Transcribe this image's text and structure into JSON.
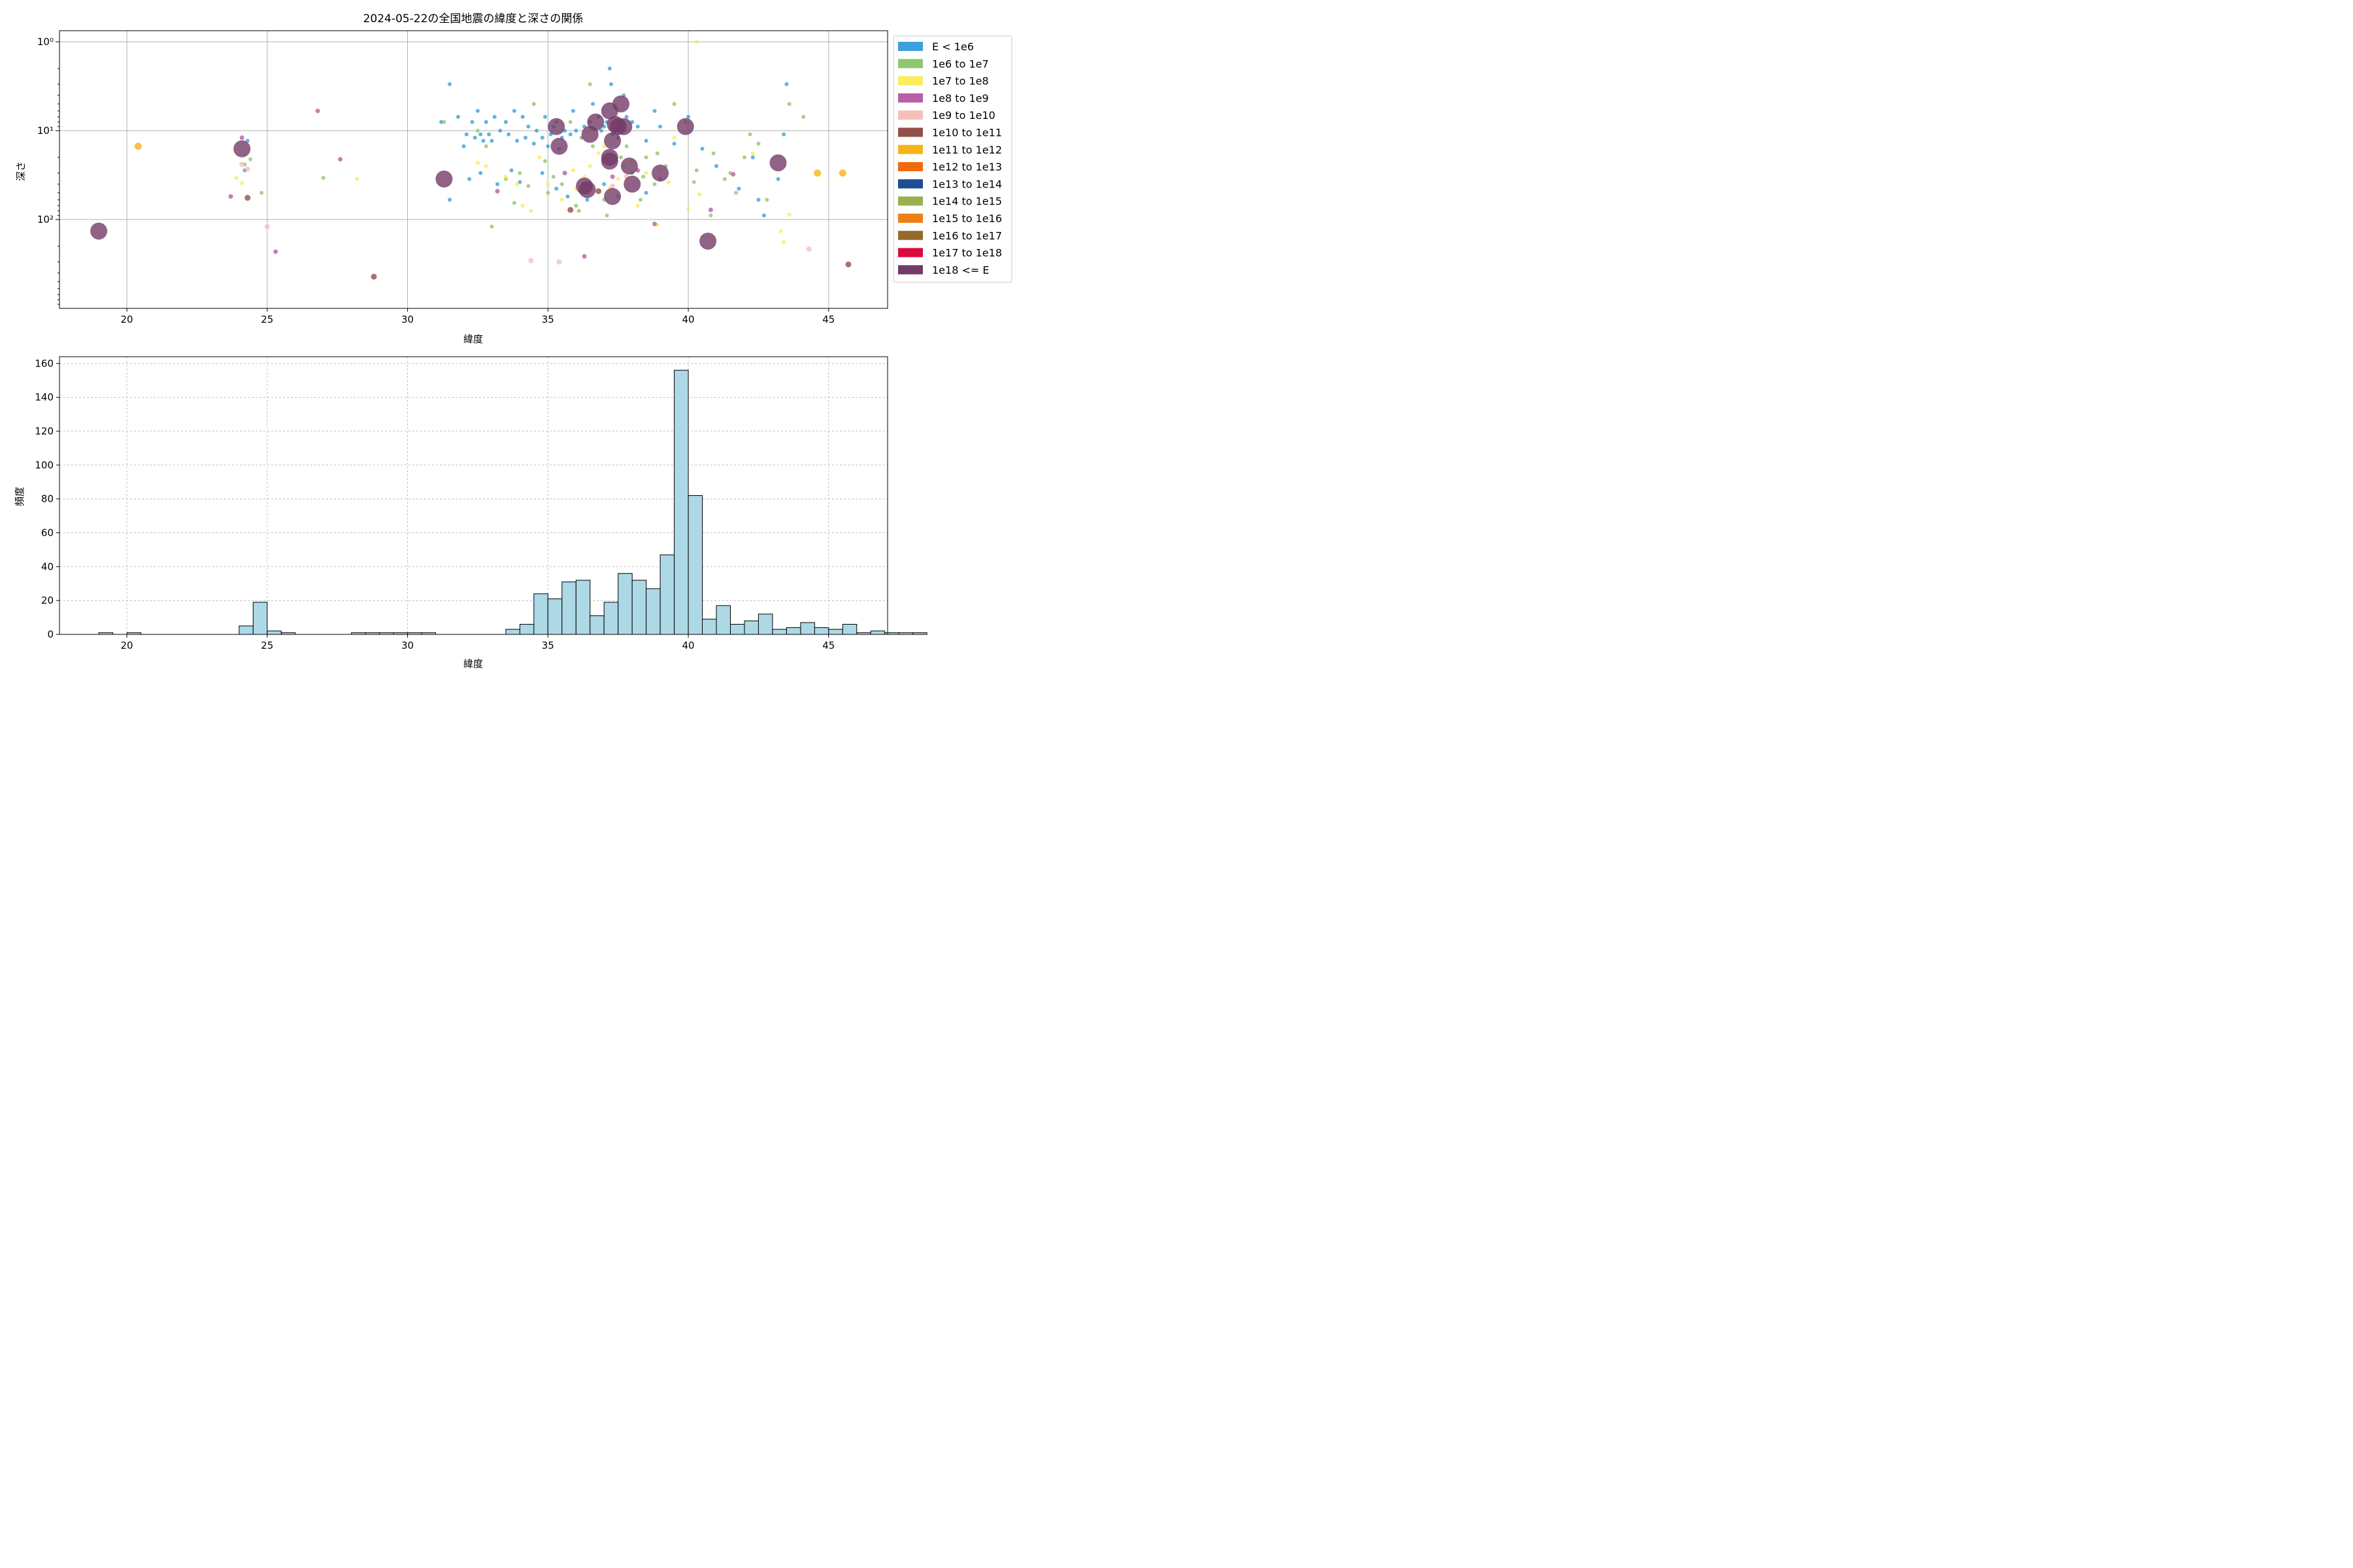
{
  "chart_data": [
    {
      "type": "scatter",
      "title": "2024-05-22の全国地震の緯度と深さの関係",
      "xlabel": "緯度",
      "ylabel": "深さ",
      "xlim": [
        17.6,
        47.1
      ],
      "ylim": [
        1000,
        0.75
      ],
      "yscale": "log",
      "y_inverted": true,
      "grid": true,
      "x_ticks": [
        "20",
        "25",
        "30",
        "35",
        "40",
        "45"
      ],
      "y_ticks": [
        {
          "value": 1,
          "label": "10⁰"
        },
        {
          "value": 10,
          "label": "10¹"
        },
        {
          "value": 100,
          "label": "10²"
        }
      ],
      "legend_position": "outside-right",
      "legend": [
        {
          "label": "E < 1e6",
          "color": "#3ca0dc"
        },
        {
          "label": "1e6 to 1e7",
          "color": "#8ec86e"
        },
        {
          "label": "1e7 to 1e8",
          "color": "#fbec5d"
        },
        {
          "label": "1e8 to 1e9",
          "color": "#b85ea7"
        },
        {
          "label": "1e9 to 1e10",
          "color": "#f5c0ba"
        },
        {
          "label": "1e10 to 1e11",
          "color": "#934f4a"
        },
        {
          "label": "1e11 to 1e12",
          "color": "#f7b417"
        },
        {
          "label": "1e12 to 1e13",
          "color": "#ef6a0c"
        },
        {
          "label": "1e13 to 1e14",
          "color": "#1d4d92"
        },
        {
          "label": "1e14 to 1e15",
          "color": "#9ab04f"
        },
        {
          "label": "1e15 to 1e16",
          "color": "#ef7f15"
        },
        {
          "label": "1e16 to 1e17",
          "color": "#946b2c"
        },
        {
          "label": "1e17 to 1e18",
          "color": "#dc0a3c"
        },
        {
          "label": "1e18 <= E",
          "color": "#733b68"
        }
      ],
      "series": [
        {
          "name": "E < 1e6",
          "points": [
            [
              31.5,
              3
            ],
            [
              31.2,
              8
            ],
            [
              31.8,
              7
            ],
            [
              32.1,
              11
            ],
            [
              32.3,
              8
            ],
            [
              32.5,
              6
            ],
            [
              32.6,
              11
            ],
            [
              32.7,
              13
            ],
            [
              32.8,
              8
            ],
            [
              32.9,
              11
            ],
            [
              33.0,
              13
            ],
            [
              33.1,
              7
            ],
            [
              33.3,
              10
            ],
            [
              33.5,
              8
            ],
            [
              33.6,
              11
            ],
            [
              33.8,
              6
            ],
            [
              33.9,
              13
            ],
            [
              34.1,
              7
            ],
            [
              34.2,
              12
            ],
            [
              34.3,
              9
            ],
            [
              34.5,
              14
            ],
            [
              34.6,
              10
            ],
            [
              34.8,
              12
            ],
            [
              34.9,
              7
            ],
            [
              35.0,
              15
            ],
            [
              35.1,
              11
            ],
            [
              35.2,
              9
            ],
            [
              35.3,
              8
            ],
            [
              35.4,
              16
            ],
            [
              35.5,
              12
            ],
            [
              35.6,
              10
            ],
            [
              35.8,
              11
            ],
            [
              35.9,
              6
            ],
            [
              36.0,
              10
            ],
            [
              36.2,
              12
            ],
            [
              36.3,
              9
            ],
            [
              36.5,
              8
            ],
            [
              36.6,
              5
            ],
            [
              36.8,
              7
            ],
            [
              36.9,
              10
            ],
            [
              37.0,
              9
            ],
            [
              37.1,
              8
            ],
            [
              37.2,
              2
            ],
            [
              37.25,
              3
            ],
            [
              37.3,
              11
            ],
            [
              37.4,
              10
            ],
            [
              37.5,
              12
            ],
            [
              37.55,
              9
            ],
            [
              37.6,
              8
            ],
            [
              37.7,
              4
            ],
            [
              37.8,
              7
            ],
            [
              38.0,
              8
            ],
            [
              38.2,
              9
            ],
            [
              38.5,
              13
            ],
            [
              38.8,
              6
            ],
            [
              39.0,
              9
            ],
            [
              39.5,
              14
            ],
            [
              40.0,
              7
            ],
            [
              40.5,
              16
            ],
            [
              41.0,
              25
            ],
            [
              41.8,
              45
            ],
            [
              42.3,
              20
            ],
            [
              42.7,
              90
            ],
            [
              43.2,
              35
            ],
            [
              43.4,
              11
            ],
            [
              43.5,
              3
            ],
            [
              32.0,
              15
            ],
            [
              32.4,
              12
            ],
            [
              32.2,
              35
            ],
            [
              33.2,
              40
            ],
            [
              34.0,
              38
            ],
            [
              34.8,
              30
            ],
            [
              35.3,
              45
            ],
            [
              36.4,
              60
            ],
            [
              37.0,
              40
            ],
            [
              38.5,
              50
            ],
            [
              39.0,
              35
            ],
            [
              42.5,
              60
            ],
            [
              31.5,
              60
            ],
            [
              33.7,
              28
            ],
            [
              35.7,
              55
            ],
            [
              24.2,
              28
            ],
            [
              24.3,
              13
            ],
            [
              32.6,
              30
            ]
          ]
        },
        {
          "name": "1e6 to 1e7",
          "points": [
            [
              24.2,
              24
            ],
            [
              24.4,
              21
            ],
            [
              24.8,
              50
            ],
            [
              27.0,
              34
            ],
            [
              31.3,
              8
            ],
            [
              32.5,
              10
            ],
            [
              33.0,
              120
            ],
            [
              33.5,
              35
            ],
            [
              34.0,
              30
            ],
            [
              34.5,
              5
            ],
            [
              35.0,
              50
            ],
            [
              35.5,
              40
            ],
            [
              36.0,
              70
            ],
            [
              36.5,
              3
            ],
            [
              37.0,
              60
            ],
            [
              37.5,
              55
            ],
            [
              38.0,
              30
            ],
            [
              38.5,
              20
            ],
            [
              38.8,
              40
            ],
            [
              39.5,
              5
            ],
            [
              40.2,
              38
            ],
            [
              40.9,
              18
            ],
            [
              41.5,
              30
            ],
            [
              42.0,
              20
            ],
            [
              42.5,
              14
            ],
            [
              43.6,
              5
            ],
            [
              44.1,
              7
            ],
            [
              35.8,
              8
            ],
            [
              36.2,
              12
            ],
            [
              37.3,
              10
            ],
            [
              37.8,
              15
            ],
            [
              38.4,
              33
            ],
            [
              39.2,
              25
            ],
            [
              40.3,
              28
            ],
            [
              41.7,
              50
            ],
            [
              42.8,
              60
            ],
            [
              33.8,
              65
            ],
            [
              34.3,
              42
            ],
            [
              35.2,
              33
            ],
            [
              36.6,
              15
            ],
            [
              37.6,
              20
            ],
            [
              38.9,
              18
            ],
            [
              32.8,
              15
            ],
            [
              34.9,
              22
            ],
            [
              36.1,
              80
            ],
            [
              37.1,
              90
            ],
            [
              38.3,
              60
            ],
            [
              39.9,
              8
            ],
            [
              40.8,
              90
            ],
            [
              41.3,
              35
            ],
            [
              42.2,
              11
            ]
          ]
        },
        {
          "name": "1e7 to 1e8",
          "points": [
            [
              23.9,
              34
            ],
            [
              24.1,
              39
            ],
            [
              28.2,
              35
            ],
            [
              32.8,
              25
            ],
            [
              33.5,
              33
            ],
            [
              34.4,
              80
            ],
            [
              35.0,
              40
            ],
            [
              35.5,
              60
            ],
            [
              36.0,
              45
            ],
            [
              36.5,
              25
            ],
            [
              37.0,
              15
            ],
            [
              37.5,
              35
            ],
            [
              38.0,
              22
            ],
            [
              38.5,
              30
            ],
            [
              39.0,
              28
            ],
            [
              39.5,
              12
            ],
            [
              40.0,
              75
            ],
            [
              40.3,
              1.0
            ],
            [
              40.4,
              52
            ],
            [
              42.3,
              18
            ],
            [
              43.3,
              135
            ],
            [
              43.4,
              180
            ],
            [
              43.6,
              88
            ],
            [
              36.8,
              18
            ],
            [
              37.7,
              25
            ],
            [
              34.7,
              20
            ],
            [
              38.9,
              115
            ],
            [
              39.3,
              38
            ],
            [
              35.9,
              28
            ],
            [
              33.9,
              40
            ],
            [
              37.2,
              45
            ],
            [
              36.3,
              33
            ],
            [
              38.2,
              70
            ],
            [
              32.5,
              23
            ],
            [
              34.1,
              70
            ]
          ]
        },
        {
          "name": "1e8 to 1e9",
          "points": [
            [
              23.7,
              55
            ],
            [
              24.1,
              12
            ],
            [
              25.3,
              230
            ],
            [
              26.8,
              6
            ],
            [
              27.6,
              21
            ],
            [
              33.2,
              48
            ],
            [
              35.6,
              30
            ],
            [
              36.3,
              260
            ],
            [
              37.3,
              33
            ],
            [
              38.2,
              28
            ],
            [
              38.8,
              112
            ],
            [
              40.8,
              78
            ],
            [
              41.6,
              31
            ]
          ]
        },
        {
          "name": "1e9 to 1e10",
          "points": [
            [
              24.1,
              24
            ],
            [
              24.3,
              27
            ],
            [
              25.0,
              120
            ],
            [
              34.4,
              290
            ],
            [
              35.4,
              300
            ],
            [
              37.3,
              42
            ],
            [
              37.8,
              33
            ],
            [
              44.3,
              215
            ]
          ]
        },
        {
          "name": "1e10 to 1e11",
          "points": [
            [
              24.3,
              57
            ],
            [
              28.8,
              440
            ],
            [
              35.8,
              78
            ],
            [
              36.8,
              48
            ],
            [
              45.7,
              320
            ]
          ]
        },
        {
          "name": "1e11 to 1e12",
          "points": [
            [
              20.4,
              15
            ],
            [
              44.6,
              30
            ],
            [
              45.5,
              30
            ]
          ]
        },
        {
          "name": "1e18 <= E",
          "points": [
            [
              19.0,
              135
            ],
            [
              24.1,
              16
            ],
            [
              31.3,
              35
            ],
            [
              35.3,
              9
            ],
            [
              35.4,
              15
            ],
            [
              36.3,
              42
            ],
            [
              36.4,
              46
            ],
            [
              36.5,
              11
            ],
            [
              36.7,
              8
            ],
            [
              37.2,
              6
            ],
            [
              37.2,
              20
            ],
            [
              37.2,
              22
            ],
            [
              37.3,
              55
            ],
            [
              37.3,
              13
            ],
            [
              37.4,
              8.5
            ],
            [
              37.5,
              9
            ],
            [
              37.6,
              5
            ],
            [
              37.7,
              9
            ],
            [
              37.9,
              25
            ],
            [
              38.0,
              40
            ],
            [
              39.0,
              30
            ],
            [
              39.9,
              9
            ],
            [
              40.7,
              175
            ],
            [
              43.2,
              23
            ]
          ]
        }
      ]
    },
    {
      "type": "bar",
      "subtype": "histogram",
      "title": "",
      "xlabel": "緯度",
      "ylabel": "頻度",
      "xlim": [
        17.6,
        47.1
      ],
      "ylim": [
        0,
        164
      ],
      "grid": true,
      "x_ticks": [
        "20",
        "25",
        "30",
        "35",
        "40",
        "45"
      ],
      "y_ticks": [
        "0",
        "20",
        "40",
        "60",
        "80",
        "100",
        "120",
        "140",
        "160"
      ],
      "bar_color": "#add8e6",
      "bin_start": 19.0,
      "bin_width": 0.5,
      "values": [
        1,
        0,
        1,
        0,
        0,
        0,
        0,
        0,
        0,
        0,
        5,
        19,
        2,
        1,
        0,
        0,
        0,
        0,
        1,
        1,
        1,
        1,
        1,
        1,
        0,
        0,
        0,
        0,
        0,
        3,
        6,
        24,
        21,
        31,
        32,
        11,
        19,
        36,
        32,
        27,
        47,
        156,
        82,
        9,
        17,
        6,
        8,
        12,
        3,
        4,
        7,
        4,
        3,
        6,
        1,
        2,
        1,
        1,
        1
      ]
    }
  ]
}
